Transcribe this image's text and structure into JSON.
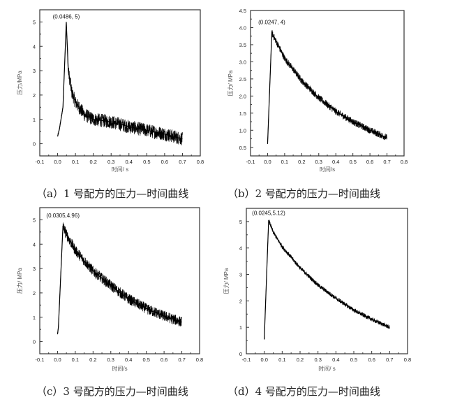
{
  "chart_data": [
    {
      "id": "a",
      "type": "line",
      "caption": "（a）1 号配方的压力—时间曲线",
      "xlabel": "时间/ s",
      "ylabel": "压力/MPa",
      "xlim": [
        -0.1,
        0.8
      ],
      "ylim": [
        -0.5,
        5.5
      ],
      "xticks": [
        -0.1,
        0.0,
        0.1,
        0.2,
        0.3,
        0.4,
        0.5,
        0.6,
        0.7,
        0.8
      ],
      "yticks": [
        0,
        1,
        2,
        3,
        4,
        5
      ],
      "ytick_decimals": 0,
      "annotation": {
        "text": "(0.0486, 5)",
        "x": 0.0486,
        "y": 5
      },
      "series": {
        "name": "pressure",
        "noise": 0.28,
        "x": [
          0,
          0.01,
          0.03,
          0.0486,
          0.06,
          0.08,
          0.1,
          0.15,
          0.2,
          0.3,
          0.4,
          0.5,
          0.6,
          0.7
        ],
        "y": [
          0.3,
          0.6,
          1.5,
          5.0,
          3.0,
          2.1,
          1.7,
          1.2,
          1.0,
          0.9,
          0.7,
          0.55,
          0.4,
          0.2
        ]
      }
    },
    {
      "id": "b",
      "type": "line",
      "caption": "（b）2 号配方的压力—时间曲线",
      "xlabel": "时间/s",
      "ylabel": "压力/ MPa",
      "xlim": [
        -0.1,
        0.8
      ],
      "ylim": [
        0.25,
        4.5
      ],
      "xticks": [
        -0.1,
        0.0,
        0.1,
        0.2,
        0.3,
        0.4,
        0.5,
        0.6,
        0.7,
        0.8
      ],
      "yticks": [
        0.5,
        1.0,
        1.5,
        2.0,
        2.5,
        3.0,
        3.5,
        4.0,
        4.5
      ],
      "ytick_decimals": 1,
      "annotation": {
        "text": "(0.0247, 4)",
        "x": 0.0247,
        "y": 4
      },
      "series": {
        "name": "pressure",
        "noise": 0.1,
        "x": [
          0,
          0.0247,
          0.05,
          0.1,
          0.2,
          0.3,
          0.4,
          0.5,
          0.6,
          0.7
        ],
        "y": [
          0.6,
          3.85,
          3.6,
          3.1,
          2.45,
          1.95,
          1.55,
          1.25,
          1.0,
          0.78
        ]
      }
    },
    {
      "id": "c",
      "type": "line",
      "caption": "（c）3 号配方的压力—时间曲线",
      "xlabel": "时间/s",
      "ylabel": "压力/ MPa",
      "xlim": [
        -0.1,
        0.8
      ],
      "ylim": [
        -0.5,
        5.5
      ],
      "xticks": [
        -0.1,
        0.0,
        0.1,
        0.2,
        0.3,
        0.4,
        0.5,
        0.6,
        0.7,
        0.8
      ],
      "yticks": [
        0,
        1,
        2,
        3,
        4,
        5
      ],
      "ytick_decimals": 0,
      "annotation": {
        "text": "(0.0305,4.96)",
        "x": 0.0305,
        "y": 4.96
      },
      "series": {
        "name": "pressure",
        "noise": 0.22,
        "x": [
          0,
          0.005,
          0.0305,
          0.05,
          0.1,
          0.2,
          0.3,
          0.4,
          0.5,
          0.6,
          0.7
        ],
        "y": [
          0.3,
          0.6,
          4.75,
          4.4,
          3.75,
          2.9,
          2.3,
          1.75,
          1.35,
          1.05,
          0.8
        ]
      }
    },
    {
      "id": "d",
      "type": "line",
      "caption": "（d）4 号配方的压力—时间曲线",
      "xlabel": "时间/ s",
      "ylabel": "压力/ MPa",
      "xlim": [
        -0.1,
        0.8
      ],
      "ylim": [
        0,
        5.5
      ],
      "xticks": [
        -0.1,
        0.0,
        0.1,
        0.2,
        0.3,
        0.4,
        0.5,
        0.6,
        0.7,
        0.8
      ],
      "yticks": [
        0,
        1,
        2,
        3,
        4,
        5
      ],
      "ytick_decimals": 0,
      "annotation": {
        "text": "(0.0245,5.12)",
        "x": 0.0245,
        "y": 5.12
      },
      "series": {
        "name": "pressure",
        "noise": 0.08,
        "x": [
          0,
          0.0245,
          0.05,
          0.1,
          0.2,
          0.3,
          0.4,
          0.5,
          0.6,
          0.7
        ],
        "y": [
          0.55,
          5.05,
          4.6,
          4.05,
          3.25,
          2.6,
          2.1,
          1.65,
          1.3,
          1.0
        ]
      }
    }
  ]
}
